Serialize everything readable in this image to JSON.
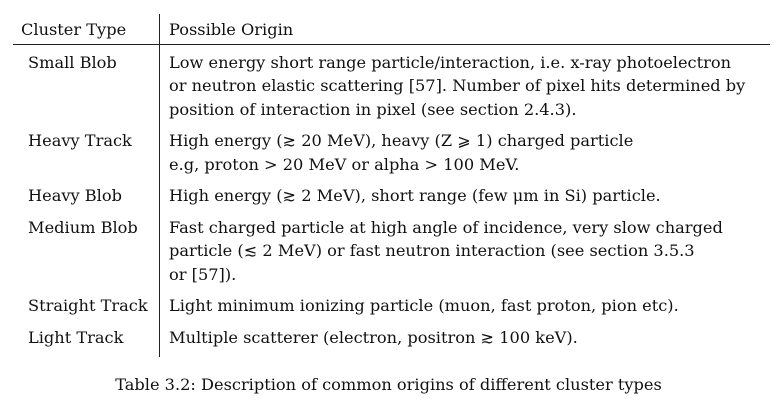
{
  "table": {
    "headers": [
      "Cluster Type",
      "Possible Origin"
    ],
    "rows": [
      {
        "type": "Small Blob",
        "lines": [
          "Low energy short range particle/interaction, i.e. x-ray photoelectron",
          "or neutron elastic scattering [57]. Number of pixel hits determined by",
          "position of interaction in pixel (see section 2.4.3)."
        ]
      },
      {
        "type": "Heavy Track",
        "lines": [
          "High energy (≳ 20 MeV), heavy (Z ⩾ 1) charged particle",
          "e.g, proton > 20 MeV or alpha > 100 MeV."
        ]
      },
      {
        "type": "Heavy Blob",
        "lines": [
          "High energy (≳ 2 MeV), short range (few μm in Si) particle."
        ]
      },
      {
        "type": "Medium Blob",
        "lines": [
          "Fast charged particle at high angle of incidence, very slow charged",
          "particle (≲ 2 MeV) or fast neutron interaction (see section 3.5.3",
          "or [57])."
        ]
      },
      {
        "type": "Straight Track",
        "lines": [
          "Light minimum ionizing particle (muon, fast proton, pion etc)."
        ]
      },
      {
        "type": "Light Track",
        "lines": [
          "Multiple scatterer (electron, positron ≳ 100 keV)."
        ]
      }
    ]
  },
  "caption": "Table 3.2: Description of common origins of different cluster types"
}
